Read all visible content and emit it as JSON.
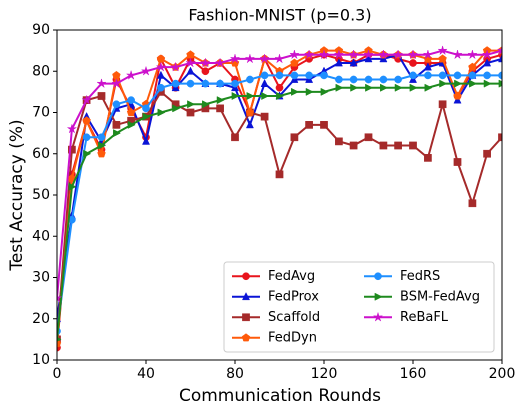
{
  "chart_data": {
    "type": "line",
    "title": "Fashion-MNIST (p=0.3)",
    "xlabel": "Communication Rounds",
    "ylabel": "Test Accuracy (%)",
    "x": [
      0,
      6.7,
      13.3,
      20,
      26.7,
      33.3,
      40,
      46.7,
      53.3,
      60,
      66.7,
      73.3,
      80,
      86.7,
      93.3,
      100,
      106.7,
      113.3,
      120,
      126.7,
      133.3,
      140,
      146.7,
      153.3,
      160,
      166.7,
      173.3,
      180,
      186.7,
      193.3,
      200
    ],
    "xlim": [
      0,
      200
    ],
    "xticks": [
      0,
      40,
      80,
      120,
      160,
      200
    ],
    "ylim": [
      10,
      90
    ],
    "yticks": [
      10,
      20,
      30,
      40,
      50,
      60,
      70,
      80,
      90
    ],
    "legend": "lower right",
    "series": [
      {
        "name": "FedAvg",
        "color": "#e8141c",
        "marker": "o",
        "values": [
          13,
          55,
          68,
          61,
          78,
          71,
          64,
          83,
          76,
          83,
          80,
          82,
          78,
          70,
          83,
          76,
          81,
          83,
          84,
          83,
          82,
          84,
          84,
          83,
          82,
          82,
          82,
          74,
          80,
          83,
          84
        ]
      },
      {
        "name": "FedProx",
        "color": "#0a14d6",
        "marker": "^",
        "values": [
          20,
          45,
          69,
          63,
          71,
          72,
          63,
          79,
          76,
          80,
          77,
          77,
          76,
          67,
          77,
          74,
          78,
          78,
          80,
          82,
          82,
          83,
          83,
          84,
          78,
          81,
          82,
          73,
          79,
          82,
          83
        ]
      },
      {
        "name": "Scaffold",
        "color": "#a52a2a",
        "marker": "s",
        "values": [
          15,
          61,
          73,
          74,
          67,
          68,
          69,
          75,
          72,
          70,
          71,
          71,
          64,
          70,
          69,
          55,
          64,
          67,
          67,
          63,
          62,
          64,
          62,
          62,
          62,
          59,
          72,
          58,
          48,
          60,
          64
        ]
      },
      {
        "name": "FedDyn",
        "color": "#ff5a0a",
        "marker": "p",
        "values": [
          14,
          54,
          68,
          60,
          79,
          70,
          72,
          83,
          81,
          84,
          82,
          82,
          82,
          70,
          83,
          80,
          82,
          84,
          85,
          85,
          84,
          85,
          84,
          84,
          84,
          83,
          83,
          74,
          81,
          85,
          85
        ]
      },
      {
        "name": "FedRS",
        "color": "#1e8fff",
        "marker": "o",
        "values": [
          17,
          44,
          64,
          64,
          72,
          73,
          71,
          76,
          77,
          77,
          77,
          77,
          77,
          78,
          79,
          79,
          79,
          79,
          79,
          78,
          78,
          78,
          78,
          78,
          79,
          79,
          79,
          79,
          79,
          79,
          79
        ]
      },
      {
        "name": "BSM-FedAvg",
        "color": "#1e8a1e",
        "marker": ">",
        "values": [
          15,
          52,
          60,
          62,
          65,
          67,
          69,
          70,
          71,
          72,
          72,
          73,
          74,
          74,
          74,
          74,
          75,
          75,
          75,
          76,
          76,
          76,
          76,
          76,
          76,
          76,
          77,
          77,
          77,
          77,
          77
        ]
      },
      {
        "name": "ReBaFL",
        "color": "#cc11cc",
        "marker": "*",
        "values": [
          25,
          66,
          73,
          77,
          77,
          79,
          80,
          81,
          81,
          82,
          82,
          82,
          83,
          83,
          83,
          83,
          84,
          84,
          84,
          84,
          84,
          84,
          84,
          84,
          84,
          84,
          85,
          84,
          84,
          84,
          85
        ]
      }
    ]
  }
}
